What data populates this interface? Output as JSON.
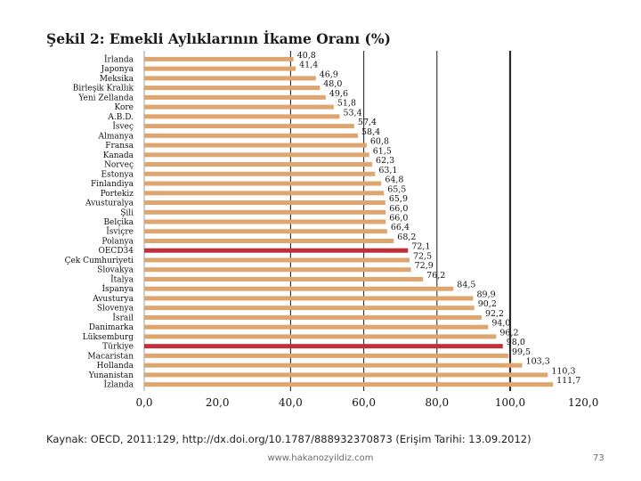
{
  "chart_data": {
    "type": "bar",
    "orientation": "horizontal",
    "title": "Şekil 2: Emekli Aylıklarının İkame Oranı (%)",
    "categories": [
      "İrlanda",
      "Japonya",
      "Meksika",
      "Birleşik Krallık",
      "Yeni Zellanda",
      "Kore",
      "A.B.D.",
      "İsveç",
      "Almanya",
      "Fransa",
      "Kanada",
      "Norveç",
      "Estonya",
      "Finlandiya",
      "Portekiz",
      "Avusturalya",
      "Şili",
      "Belçika",
      "İsviçre",
      "Polanya",
      "OECD34",
      "Çek Cumhuriyeti",
      "Slovakya",
      "İtalya",
      "İspanya",
      "Avusturya",
      "Slovenya",
      "İsrail",
      "Danimarka",
      "Lüksemburg",
      "Türkiye",
      "Macaristan",
      "Hollanda",
      "Yunanistan",
      "İzlanda"
    ],
    "value_labels": [
      "40,8",
      "41,4",
      "46,9",
      "48,0",
      "49,6",
      "51,8",
      "53,4",
      "57,4",
      "58,4",
      "60,8",
      "61,5",
      "62,3",
      "63,1",
      "64,8",
      "65,5",
      "65,9",
      "66,0",
      "66,0",
      "66,4",
      "68,2",
      "72,1",
      "72,5",
      "72,9",
      "76,2",
      "84,5",
      "89,9",
      "90,2",
      "92,2",
      "94,0",
      "96,2",
      "98,0",
      "99,5",
      "103,3",
      "110,3",
      "111,7"
    ],
    "values": [
      40.8,
      41.4,
      46.9,
      48.0,
      49.6,
      51.8,
      53.4,
      57.4,
      58.4,
      60.8,
      61.5,
      62.3,
      63.1,
      64.8,
      65.5,
      65.9,
      66.0,
      66.0,
      66.4,
      68.2,
      72.1,
      72.5,
      72.9,
      76.2,
      84.5,
      89.9,
      90.2,
      92.2,
      94.0,
      96.2,
      98.0,
      99.5,
      103.3,
      110.3,
      111.7
    ],
    "highlight": {
      "OECD34": "#c0303a",
      "Türkiye": "#c0303a"
    },
    "xlim": [
      0,
      120
    ],
    "xticks": [
      "0,0",
      "20,0",
      "40,0",
      "60,0",
      "80,0",
      "100,0",
      "120,0"
    ],
    "gridlines": [
      40,
      60,
      80,
      100
    ],
    "bold_gridline": 100,
    "xlabel": "",
    "ylabel": "",
    "colors": {
      "bar": "#dfa56f",
      "highlight": "#c0303a",
      "grid": "#2a2a2a"
    }
  },
  "source": "Kaynak: OECD, 2011:129, http://dx.doi.org/10.1787/888932370873 (Erişim Tarihi: 13.09.2012)",
  "footer": {
    "url": "www.hakanozyildiz.com",
    "page": "73"
  }
}
